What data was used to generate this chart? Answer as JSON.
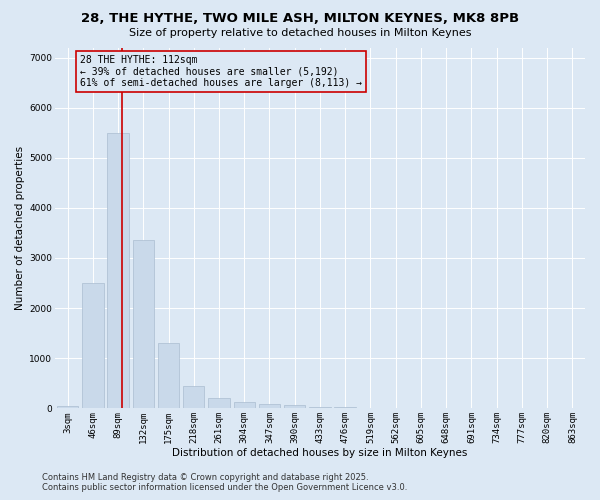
{
  "title_line1": "28, THE HYTHE, TWO MILE ASH, MILTON KEYNES, MK8 8PB",
  "title_line2": "Size of property relative to detached houses in Milton Keynes",
  "xlabel": "Distribution of detached houses by size in Milton Keynes",
  "ylabel": "Number of detached properties",
  "categories": [
    "3sqm",
    "46sqm",
    "89sqm",
    "132sqm",
    "175sqm",
    "218sqm",
    "261sqm",
    "304sqm",
    "347sqm",
    "390sqm",
    "433sqm",
    "476sqm",
    "519sqm",
    "562sqm",
    "605sqm",
    "648sqm",
    "691sqm",
    "734sqm",
    "777sqm",
    "820sqm",
    "863sqm"
  ],
  "values": [
    50,
    2500,
    5500,
    3350,
    1300,
    450,
    200,
    120,
    80,
    60,
    30,
    20,
    10,
    8,
    5,
    4,
    3,
    2,
    2,
    1,
    1
  ],
  "bar_color": "#c9d9ea",
  "bar_edge_color": "#aabdd0",
  "vline_color": "#cc0000",
  "vline_xindex": 2,
  "annotation_text": "28 THE HYTHE: 112sqm\n← 39% of detached houses are smaller (5,192)\n61% of semi-detached houses are larger (8,113) →",
  "annotation_box_color": "#cc0000",
  "annotation_bg_color": "#dce8f4",
  "ylim": [
    0,
    7200
  ],
  "yticks": [
    0,
    1000,
    2000,
    3000,
    4000,
    5000,
    6000,
    7000
  ],
  "background_color": "#dce8f4",
  "grid_color": "#ffffff",
  "footer_line1": "Contains HM Land Registry data © Crown copyright and database right 2025.",
  "footer_line2": "Contains public sector information licensed under the Open Government Licence v3.0.",
  "title_fontsize": 9.5,
  "subtitle_fontsize": 8,
  "axis_label_fontsize": 7.5,
  "tick_fontsize": 6.5,
  "annotation_fontsize": 7,
  "footer_fontsize": 6
}
